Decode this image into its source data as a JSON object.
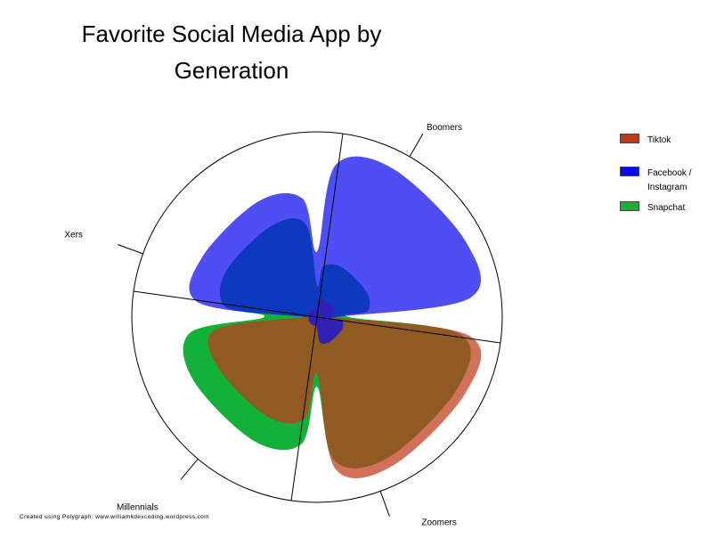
{
  "chart_data": {
    "type": "radar-area",
    "title_line1": "Favorite Social Media App by",
    "title_line2": "Generation",
    "categories": [
      "Boomers",
      "Zoomers",
      "Millennials",
      "Xers"
    ],
    "series": [
      {
        "name": "Tiktok",
        "color": "#c0391b",
        "values": [
          0.1,
          0.9,
          0.6,
          0.05
        ]
      },
      {
        "name": "Facebook / Instagram",
        "color": "#0a0af0",
        "values": [
          0.9,
          0.15,
          0.05,
          0.7
        ]
      },
      {
        "name": "Snapchat",
        "color": "#12b23a",
        "values": [
          0.3,
          0.85,
          0.75,
          0.55
        ]
      }
    ],
    "legend_position": "top-right",
    "footer": "Created using Polygraph: www.williamkdevcoding.wordpress.com"
  }
}
